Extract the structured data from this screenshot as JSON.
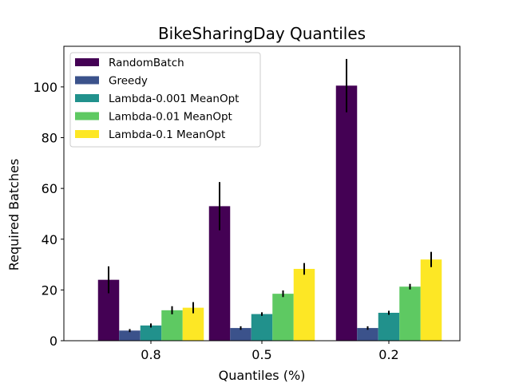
{
  "chart_data": {
    "type": "bar",
    "title": "BikeSharingDay Quantiles",
    "xlabel": "Quantiles (%)",
    "ylabel": "Required Batches",
    "categories": [
      "0.8",
      "0.5",
      "0.2"
    ],
    "ylim": [
      0,
      116
    ],
    "yticks": [
      0,
      20,
      40,
      60,
      80,
      100
    ],
    "grid": false,
    "legend_position": "top-left",
    "series": [
      {
        "name": "RandomBatch",
        "color": "#440154",
        "values": [
          24.0,
          53.0,
          100.5
        ],
        "errors": [
          5.3,
          9.5,
          10.5
        ]
      },
      {
        "name": "Greedy",
        "color": "#3b528b",
        "values": [
          4.0,
          5.0,
          5.0
        ],
        "errors": [
          0.6,
          0.7,
          0.7
        ]
      },
      {
        "name": "Lambda-0.001 MeanOpt",
        "color": "#21918c",
        "values": [
          6.0,
          10.5,
          11.0
        ],
        "errors": [
          0.8,
          0.7,
          0.8
        ]
      },
      {
        "name": "Lambda-0.01 MeanOpt",
        "color": "#5ec962",
        "values": [
          12.0,
          18.5,
          21.3
        ],
        "errors": [
          1.6,
          1.3,
          1.1
        ]
      },
      {
        "name": "Lambda-0.1 MeanOpt",
        "color": "#fde725",
        "values": [
          13.0,
          28.3,
          32.0
        ],
        "errors": [
          2.2,
          2.3,
          3.0
        ]
      }
    ]
  }
}
